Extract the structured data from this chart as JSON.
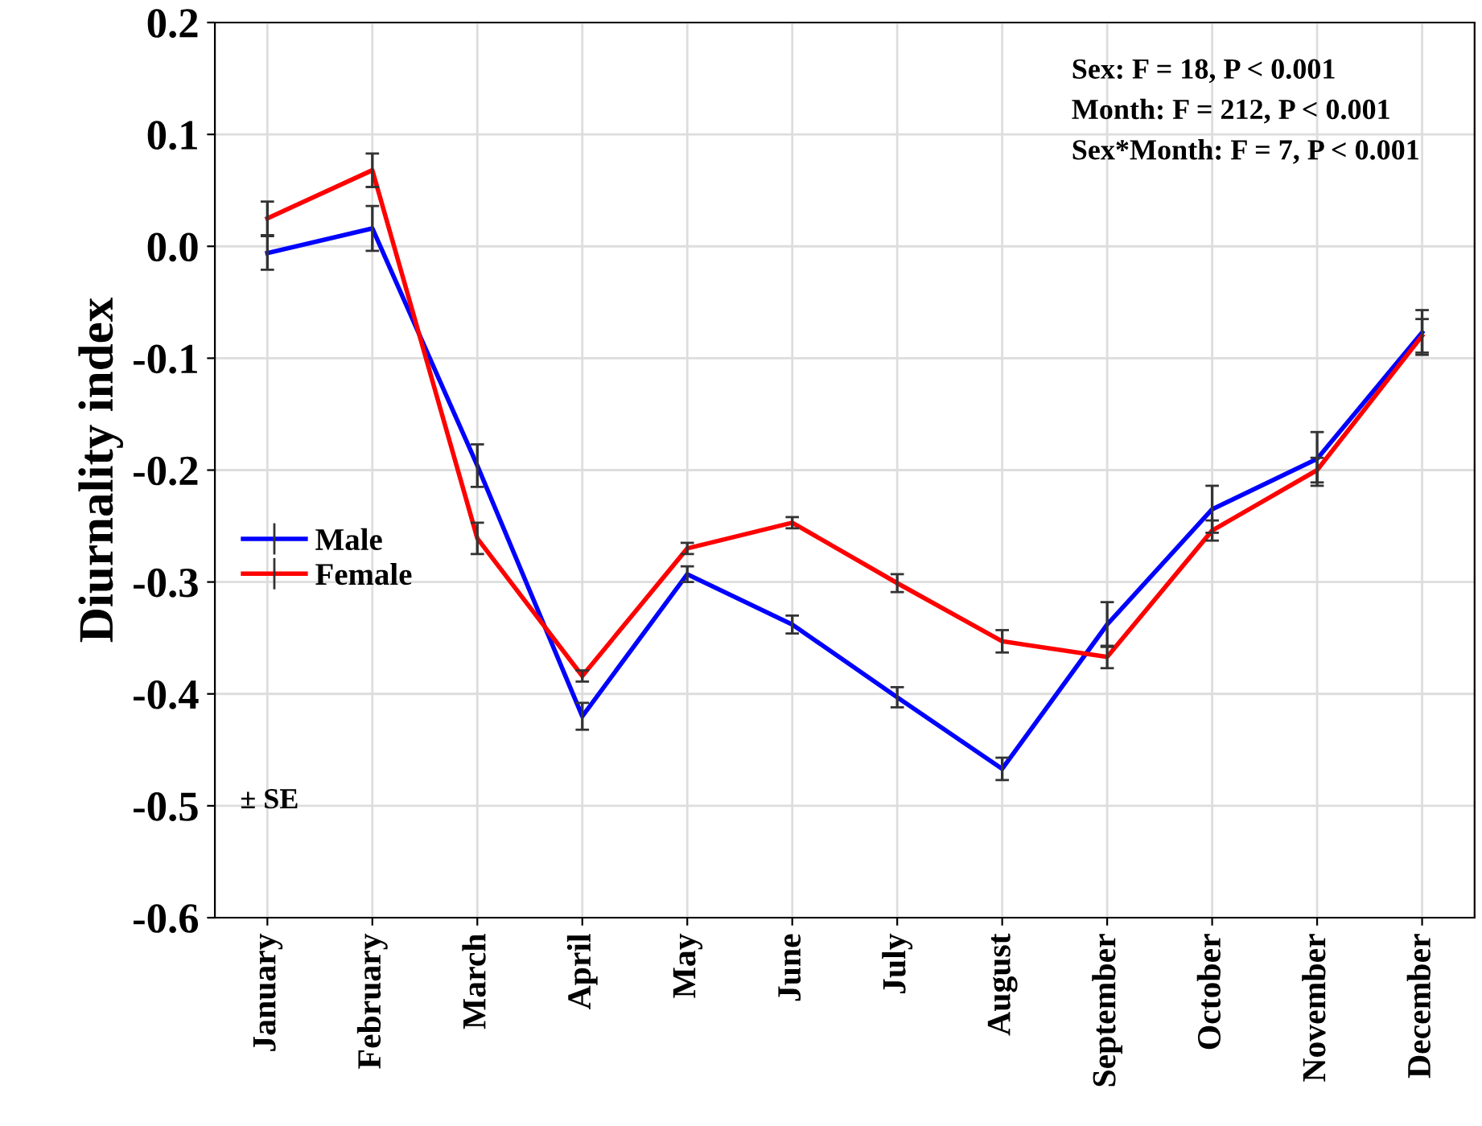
{
  "chart_data": {
    "type": "line",
    "ylabel": "Diurnality index",
    "categories": [
      "January",
      "February",
      "March",
      "April",
      "May",
      "June",
      "July",
      "August",
      "September",
      "October",
      "November",
      "December"
    ],
    "series": [
      {
        "name": "Male",
        "color": "#0000ff",
        "values": [
          -0.006,
          0.016,
          -0.196,
          -0.42,
          -0.293,
          -0.338,
          -0.403,
          -0.467,
          -0.338,
          -0.235,
          -0.19,
          -0.077
        ],
        "errors": [
          0.015,
          0.02,
          0.019,
          0.012,
          0.007,
          0.008,
          0.009,
          0.01,
          0.02,
          0.021,
          0.024,
          0.02
        ]
      },
      {
        "name": "Female",
        "color": "#ff0000",
        "values": [
          0.025,
          0.068,
          -0.261,
          -0.384,
          -0.27,
          -0.247,
          -0.301,
          -0.353,
          -0.367,
          -0.254,
          -0.2,
          -0.08
        ],
        "errors": [
          0.015,
          0.015,
          0.014,
          0.005,
          0.005,
          0.005,
          0.008,
          0.01,
          0.01,
          0.009,
          0.011,
          0.015
        ]
      }
    ],
    "ylim": [
      -0.6,
      0.2
    ],
    "yticks": [
      {
        "value": -0.6,
        "label": "-0.6"
      },
      {
        "value": -0.5,
        "label": "-0.5"
      },
      {
        "value": -0.4,
        "label": "-0.4"
      },
      {
        "value": -0.3,
        "label": "-0.3"
      },
      {
        "value": -0.2,
        "label": "-0.2"
      },
      {
        "value": -0.1,
        "label": "-0.1"
      },
      {
        "value": 0.0,
        "label": "0.0"
      },
      {
        "value": 0.1,
        "label": "0.1"
      },
      {
        "value": 0.2,
        "label": "0.2"
      }
    ],
    "grid": true,
    "legend": "left",
    "marker": "none",
    "line_style": "solid",
    "annotations": [
      "Sex: F = 18, P < 0.001\nMonth: F = 212, P < 0.001\nSex*Month: F = 7, P < 0.001",
      "± SE"
    ]
  }
}
